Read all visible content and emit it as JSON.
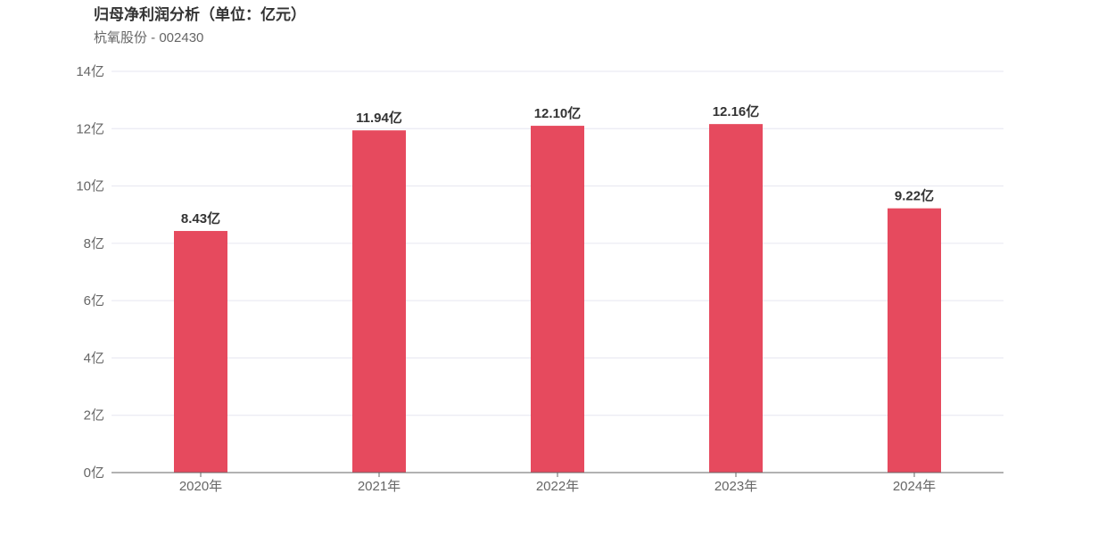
{
  "header": {
    "title": "归母净利润分析（单位：亿元）",
    "subtitle": "杭氧股份 - 002430"
  },
  "chart_data": {
    "type": "bar",
    "title": "归母净利润分析（单位：亿元）",
    "subtitle": "杭氧股份 - 002430",
    "categories": [
      "2020年",
      "2021年",
      "2022年",
      "2023年",
      "2024年"
    ],
    "values": [
      8.43,
      11.94,
      12.1,
      12.16,
      9.22
    ],
    "value_labels": [
      "8.43亿",
      "11.94亿",
      "12.10亿",
      "12.16亿",
      "9.22亿"
    ],
    "ylim": [
      0,
      14
    ],
    "yticks": [
      0,
      2,
      4,
      6,
      8,
      10,
      12,
      14
    ],
    "ytick_labels": [
      "0亿",
      "2亿",
      "4亿",
      "6亿",
      "8亿",
      "10亿",
      "12亿",
      "14亿"
    ],
    "xlabel": "",
    "ylabel": "",
    "grid": true,
    "legend": "none",
    "colors": {
      "bar": "#e64a5e",
      "grid": "#e6e6f0",
      "axis": "#666666"
    }
  }
}
